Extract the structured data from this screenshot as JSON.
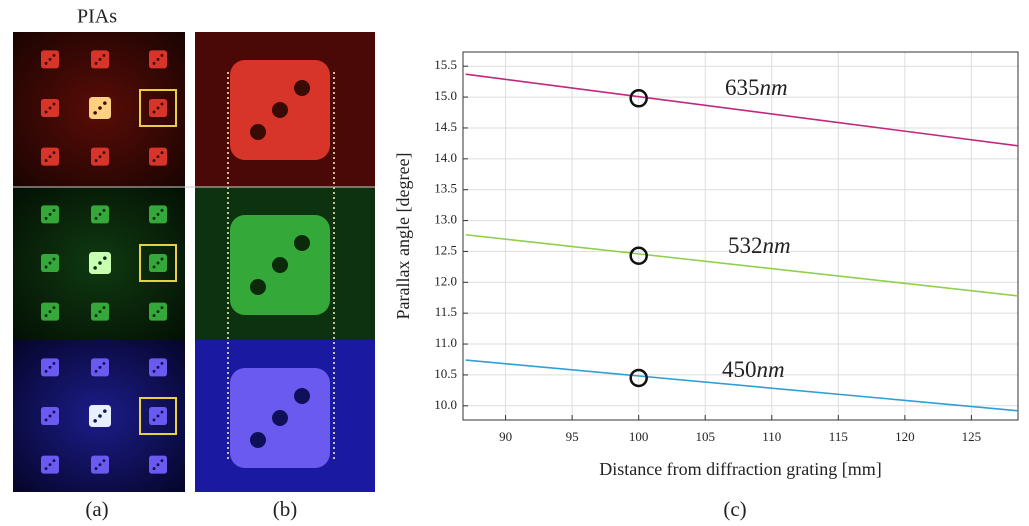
{
  "figure": {
    "title": "PIAs",
    "labels": [
      "(a)",
      "(b)",
      "(c)"
    ]
  },
  "chart_data": {
    "type": "line",
    "x_label": "Distance from diffraction grating [mm]",
    "y_label": "Parallax angle [degree]",
    "x": [
      87,
      128.5
    ],
    "series": [
      {
        "name": "635",
        "unit": "nm",
        "color": "#c0287e",
        "values": [
          15.37,
          14.21
        ],
        "marker": {
          "x": 100,
          "y": 14.98
        }
      },
      {
        "name": "532",
        "unit": "nm",
        "color": "#8fd14a",
        "values": [
          12.77,
          11.78
        ],
        "marker": {
          "x": 100,
          "y": 12.43
        }
      },
      {
        "name": "450",
        "unit": "nm",
        "color": "#2f9fd6",
        "values": [
          10.74,
          9.92
        ],
        "marker": {
          "x": 100,
          "y": 10.45
        }
      }
    ],
    "xlim": [
      86.8,
      128.5
    ],
    "ylim": [
      9.77,
      15.73
    ],
    "xticks": [
      90,
      95,
      100,
      105,
      110,
      115,
      120,
      125
    ],
    "yticks": [
      {
        "value": 10,
        "label": "10.0"
      },
      10.5,
      {
        "value": 11,
        "label": "11.0"
      },
      11.5,
      {
        "value": 12,
        "label": "12.0"
      },
      12.5,
      {
        "value": 13,
        "label": "13.0"
      },
      13.5,
      {
        "value": 14,
        "label": "14.0"
      },
      14.5,
      {
        "value": 15,
        "label": "15.0"
      },
      15.5
    ],
    "grid": true
  }
}
